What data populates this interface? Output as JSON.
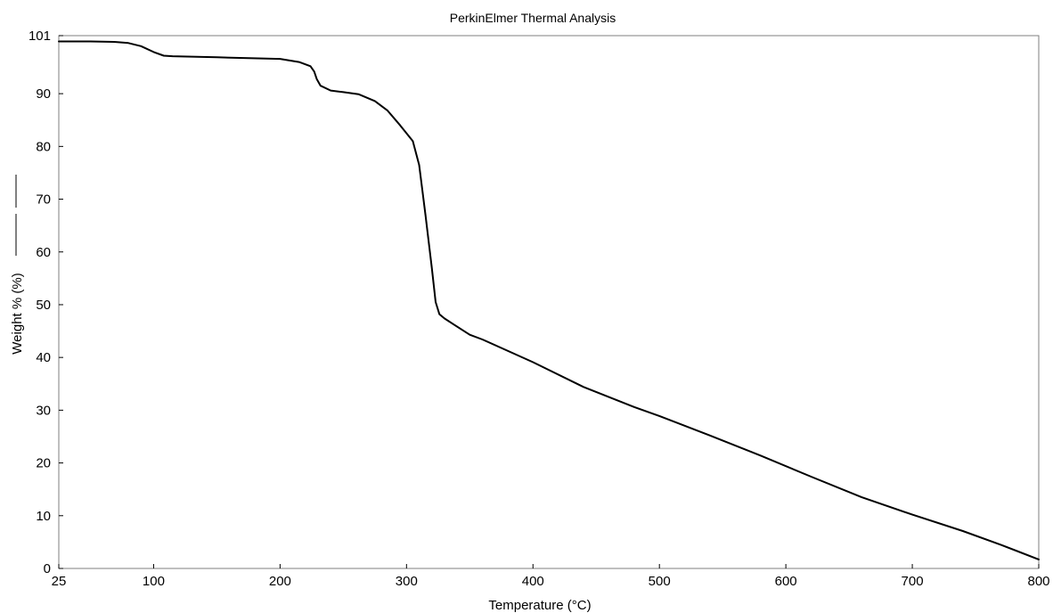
{
  "chart_data": {
    "type": "line",
    "title": "PerkinElmer Thermal Analysis",
    "xlabel": "Temperature (°C)",
    "ylabel": "Weight % (%)",
    "xlim": [
      25,
      800
    ],
    "ylim": [
      0,
      101
    ],
    "x_ticks": [
      25,
      100,
      200,
      300,
      400,
      500,
      600,
      700,
      800
    ],
    "y_ticks": [
      0,
      10,
      20,
      30,
      40,
      50,
      60,
      70,
      80,
      90,
      101
    ],
    "grid": false,
    "line_color": "#000000",
    "series": [
      {
        "points": [
          [
            25,
            99.9
          ],
          [
            50,
            99.9
          ],
          [
            70,
            99.8
          ],
          [
            80,
            99.6
          ],
          [
            90,
            99.0
          ],
          [
            100,
            97.9
          ],
          [
            108,
            97.2
          ],
          [
            115,
            97.1
          ],
          [
            150,
            96.9
          ],
          [
            200,
            96.6
          ],
          [
            215,
            96.0
          ],
          [
            224,
            95.2
          ],
          [
            227,
            94.2
          ],
          [
            229,
            92.8
          ],
          [
            232,
            91.5
          ],
          [
            240,
            90.6
          ],
          [
            250,
            90.3
          ],
          [
            262,
            89.9
          ],
          [
            275,
            88.6
          ],
          [
            285,
            86.8
          ],
          [
            295,
            84.0
          ],
          [
            305,
            81.0
          ],
          [
            310,
            76.5
          ],
          [
            315,
            67.0
          ],
          [
            320,
            57.0
          ],
          [
            323,
            50.5
          ],
          [
            326,
            48.2
          ],
          [
            330,
            47.4
          ],
          [
            350,
            44.3
          ],
          [
            360,
            43.4
          ],
          [
            400,
            39.1
          ],
          [
            440,
            34.4
          ],
          [
            480,
            30.6
          ],
          [
            500,
            28.9
          ],
          [
            540,
            25.2
          ],
          [
            580,
            21.4
          ],
          [
            620,
            17.4
          ],
          [
            660,
            13.5
          ],
          [
            700,
            10.2
          ],
          [
            740,
            7.1
          ],
          [
            770,
            4.5
          ],
          [
            800,
            1.7
          ]
        ]
      }
    ]
  }
}
